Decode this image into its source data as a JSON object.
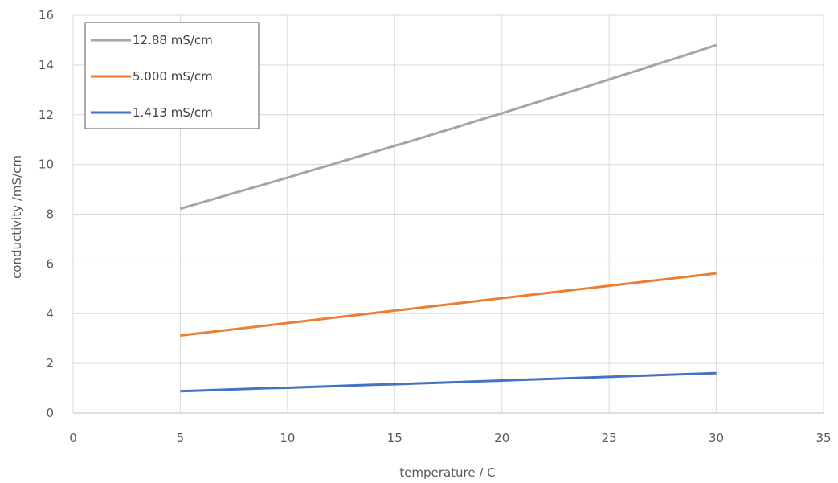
{
  "chart_data": {
    "type": "line",
    "xlabel": "temperature /  C",
    "ylabel": "conductivity /mS/cm",
    "xlim": [
      0,
      35
    ],
    "ylim": [
      0,
      16
    ],
    "x_ticks": [
      0,
      5,
      10,
      15,
      20,
      25,
      30,
      35
    ],
    "y_ticks": [
      0,
      2,
      4,
      6,
      8,
      10,
      12,
      14,
      16
    ],
    "grid": true,
    "legend_position": "top-left",
    "x": [
      5,
      6,
      7,
      8,
      9,
      10,
      11,
      12,
      13,
      14,
      15,
      16,
      17,
      18,
      19,
      20,
      21,
      22,
      23,
      24,
      25,
      26,
      27,
      28,
      29,
      30
    ],
    "series": [
      {
        "name": "12.88 mS/cm",
        "color": "#a5a5a5",
        "values": [
          8.22,
          8.47,
          8.72,
          8.97,
          9.22,
          9.47,
          9.73,
          9.98,
          10.24,
          10.49,
          10.75,
          11.0,
          11.27,
          11.53,
          11.8,
          12.06,
          12.33,
          12.6,
          12.87,
          13.14,
          13.42,
          13.69,
          13.97,
          14.24,
          14.52,
          14.8
        ]
      },
      {
        "name": "5.000 mS/cm",
        "color": "#ed7d31",
        "values": [
          3.12,
          3.22,
          3.32,
          3.42,
          3.52,
          3.62,
          3.72,
          3.82,
          3.92,
          4.02,
          4.12,
          4.22,
          4.32,
          4.42,
          4.52,
          4.62,
          4.72,
          4.82,
          4.92,
          5.02,
          5.12,
          5.22,
          5.32,
          5.42,
          5.52,
          5.62
        ]
      },
      {
        "name": "1.413 mS/cm",
        "color": "#4472c4",
        "values": [
          0.88,
          0.91,
          0.94,
          0.97,
          1.0,
          1.02,
          1.05,
          1.08,
          1.11,
          1.14,
          1.16,
          1.19,
          1.22,
          1.25,
          1.28,
          1.31,
          1.34,
          1.37,
          1.4,
          1.43,
          1.46,
          1.49,
          1.52,
          1.55,
          1.58,
          1.61
        ]
      }
    ]
  }
}
